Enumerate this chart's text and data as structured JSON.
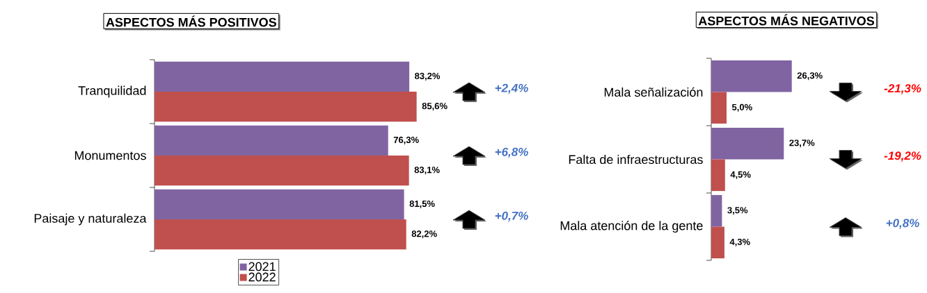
{
  "chart_data": [
    {
      "type": "bar",
      "orientation": "horizontal",
      "title": "ASPECTOS MÁS POSITIVOS",
      "categories": [
        "Tranquilidad",
        "Monumentos",
        "Paisaje y naturaleza"
      ],
      "series": [
        {
          "name": "2021",
          "color": "#8064a2",
          "values": [
            83.2,
            76.3,
            81.5
          ],
          "value_labels": [
            "83,2%",
            "76,3%",
            "81,5%"
          ]
        },
        {
          "name": "2022",
          "color": "#c0504d",
          "values": [
            85.6,
            83.1,
            82.2
          ],
          "value_labels": [
            "85,6%",
            "83,1%",
            "82,2%"
          ]
        }
      ],
      "annotations": [
        "+2,4%",
        "+6,8%",
        "+0,7%"
      ],
      "legend": "bottom"
    },
    {
      "type": "bar",
      "orientation": "horizontal",
      "title": "ASPECTOS MÁS NEGATIVOS",
      "categories": [
        "Mala señalización",
        "Falta de infraestructuras",
        "Mala atención de la gente"
      ],
      "series": [
        {
          "color": "#8064a2",
          "values": [
            26.3,
            23.7,
            3.5
          ],
          "value_labels": [
            "26,3%",
            "23,7%",
            "3,5%"
          ]
        },
        {
          "color": "#c0504d",
          "values": [
            5.0,
            4.5,
            4.3
          ],
          "value_labels": [
            "5,0%",
            "4,5%",
            "4,3%"
          ]
        }
      ],
      "annotations": [
        "-21,3%",
        "-19,2%",
        "+0,8%"
      ]
    }
  ]
}
